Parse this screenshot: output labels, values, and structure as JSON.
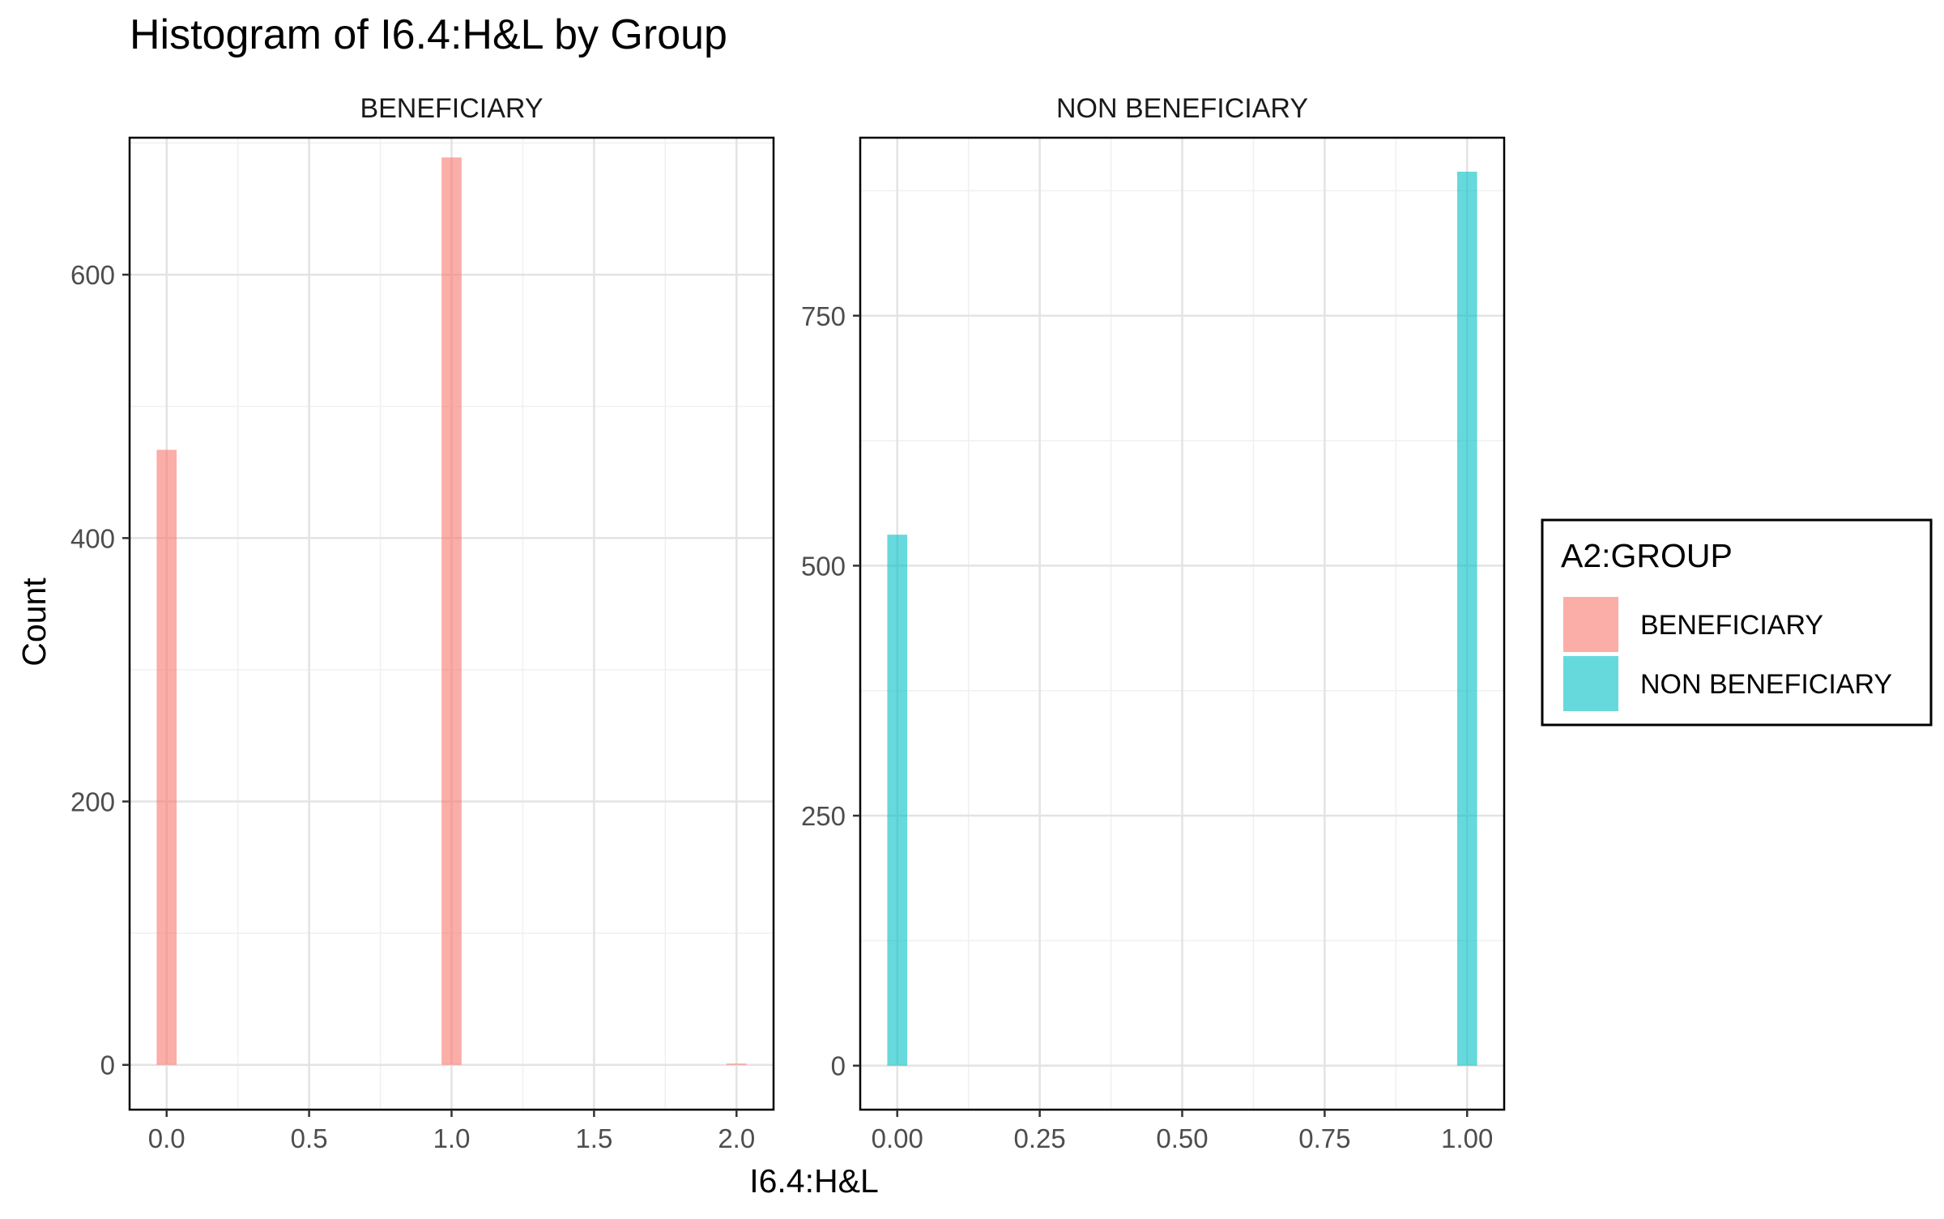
{
  "chart_data": {
    "type": "bar",
    "title": "Histogram of I6.4:H&L by Group",
    "xlabel": "I6.4:H&L",
    "ylabel": "Count",
    "grid": true,
    "legend": {
      "title": "A2:GROUP",
      "placement": "right",
      "entries": [
        {
          "label": "BENEFICIARY",
          "color": "#F8766D"
        },
        {
          "label": "NON BENEFICIARY",
          "color": "#00BFC4"
        }
      ]
    },
    "panels": [
      {
        "strip": "BENEFICIARY",
        "color": "#F8766D",
        "xlim": [
          -0.13,
          2.13
        ],
        "ylim": [
          -34,
          704
        ],
        "x_ticks": [
          0,
          0.5,
          1,
          1.5,
          2
        ],
        "x_tick_labels": [
          "0.0",
          "0.5",
          "1.0",
          "1.5",
          "2.0"
        ],
        "y_ticks": [
          0,
          200,
          400,
          600
        ],
        "y_tick_labels": [
          "0",
          "200",
          "400",
          "600"
        ],
        "x_minor": [
          0.25,
          0.75,
          1.25,
          1.75
        ],
        "y_minor": [
          100,
          300,
          500,
          700
        ],
        "bin_width": 0.07,
        "bars": [
          {
            "x": 0,
            "count": 467
          },
          {
            "x": 1,
            "count": 689
          },
          {
            "x": 2,
            "count": 1
          }
        ]
      },
      {
        "strip": "NON BENEFICIARY",
        "color": "#00BFC4",
        "xlim": [
          -0.065,
          1.065
        ],
        "ylim": [
          -44,
          928
        ],
        "x_ticks": [
          0,
          0.25,
          0.5,
          0.75,
          1
        ],
        "x_tick_labels": [
          "0.00",
          "0.25",
          "0.50",
          "0.75",
          "1.00"
        ],
        "y_ticks": [
          0,
          250,
          500,
          750
        ],
        "y_tick_labels": [
          "0",
          "250",
          "500",
          "750"
        ],
        "x_minor": [
          0.125,
          0.375,
          0.625,
          0.875
        ],
        "y_minor": [
          125,
          375,
          625,
          875
        ],
        "bin_width": 0.035,
        "bars": [
          {
            "x": 0,
            "count": 531
          },
          {
            "x": 1,
            "count": 894
          }
        ]
      }
    ]
  }
}
